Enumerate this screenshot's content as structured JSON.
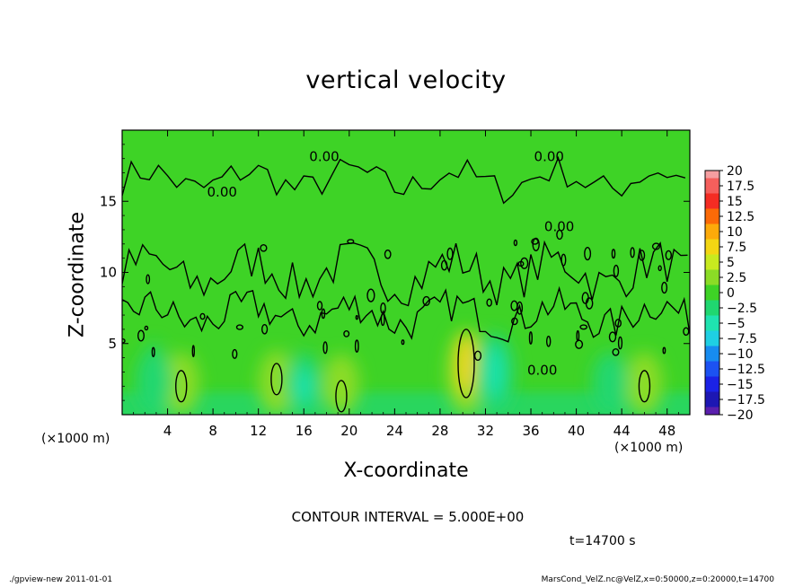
{
  "chart_data": {
    "type": "heatmap",
    "title": "vertical velocity",
    "xlabel": "X-coordinate",
    "ylabel": "Z-coordinate",
    "x_unit": "(×1000 m)",
    "y_unit": "(×1000 m)",
    "xlim": [
      0,
      50
    ],
    "ylim": [
      0,
      20
    ],
    "x_ticks": [
      4,
      8,
      12,
      16,
      20,
      24,
      28,
      32,
      36,
      40,
      44,
      48
    ],
    "y_ticks": [
      5,
      10,
      15
    ],
    "colorbar": {
      "min": -20,
      "max": 20,
      "step": 2.5,
      "labels": [
        "20",
        "17.5",
        "15",
        "12.5",
        "10",
        "7.5",
        "5",
        "2.5",
        "0",
        "−2.5",
        "−5",
        "−7.5",
        "−10",
        "−12.5",
        "−15",
        "−17.5",
        "−20"
      ],
      "colors": [
        "#f59ea0",
        "#f55f5c",
        "#f42c23",
        "#fb6a07",
        "#fcaa0a",
        "#f3d613",
        "#c8ea1f",
        "#8bdc26",
        "#3ed326",
        "#20d770",
        "#1fe3b0",
        "#1fcfe3",
        "#178cf0",
        "#1c52f2",
        "#1b22e6",
        "#1d17b3",
        "#5a1fad"
      ]
    },
    "contour_interval": 5.0,
    "contour_labels": [
      "0.00",
      "0.00",
      "0.00",
      "0.00",
      "0.00"
    ],
    "updrafts": [
      {
        "x": 5.2,
        "z": 2.0,
        "w": 3
      },
      {
        "x": 13.6,
        "z": 2.5,
        "w": 3
      },
      {
        "x": 19.3,
        "z": 1.3,
        "w": 2
      },
      {
        "x": 30.3,
        "z": 3.6,
        "w": 7
      },
      {
        "x": 46.0,
        "z": 2.0,
        "w": 2
      }
    ],
    "downdrafts": [
      {
        "x": 2.8,
        "z": 3.2,
        "w": -3
      },
      {
        "x": 16.0,
        "z": 2.0,
        "w": -4
      },
      {
        "x": 32.8,
        "z": 3.0,
        "w": -5
      },
      {
        "x": 43.0,
        "z": 2.0,
        "w": -3
      }
    ]
  },
  "labels": {
    "contour_interval_text": "CONTOUR INTERVAL = 5.000E+00",
    "time_text": "t=14700 s",
    "footer_left": "./gpview-new  2011-01-01",
    "footer_right": "MarsCond_VelZ.nc@VelZ,x=0:50000,z=0:20000,t=14700"
  }
}
